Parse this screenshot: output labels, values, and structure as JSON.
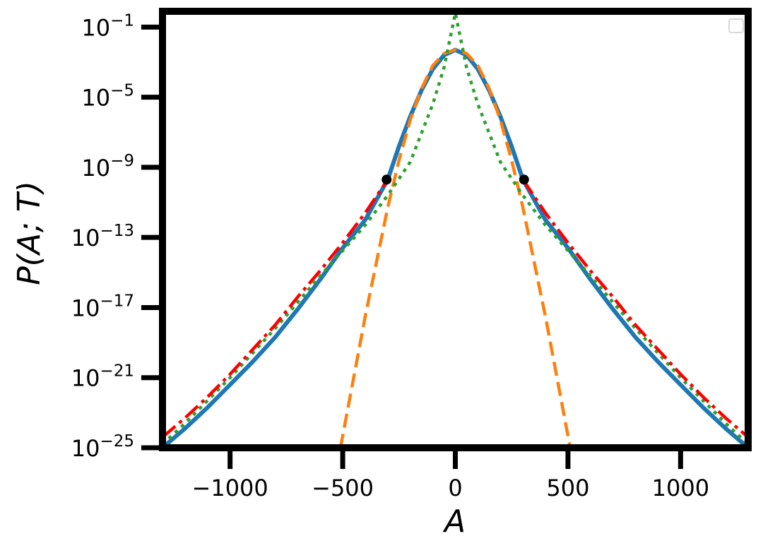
{
  "chart_data": {
    "type": "line",
    "xlabel": "A",
    "ylabel": "P(A; T)",
    "xlim": [
      -1300,
      1300
    ],
    "ylim_log10": [
      -25,
      -0.1
    ],
    "yscale": "log",
    "grid": false,
    "legend": "top-right (empty)",
    "x_ticks": [
      {
        "value": -1000,
        "label": "−1000"
      },
      {
        "value": -500,
        "label": "−500"
      },
      {
        "value": 0,
        "label": "0"
      },
      {
        "value": 500,
        "label": "500"
      },
      {
        "value": 1000,
        "label": "1000"
      }
    ],
    "y_ticks": [
      {
        "exp": -1,
        "base": "10",
        "sup": "−1"
      },
      {
        "exp": -5,
        "base": "10",
        "sup": "−5"
      },
      {
        "exp": -9,
        "base": "10",
        "sup": "−9"
      },
      {
        "exp": -13,
        "base": "10",
        "sup": "−13"
      },
      {
        "exp": -17,
        "base": "10",
        "sup": "−17"
      },
      {
        "exp": -21,
        "base": "10",
        "sup": "−21"
      },
      {
        "exp": -25,
        "base": "10",
        "sup": "−25"
      }
    ],
    "series": [
      {
        "color": "#1f77b4",
        "dash": "solid",
        "x": [
          -1300,
          -1200,
          -1100,
          -1000,
          -900,
          -800,
          -700,
          -600,
          -500,
          -400,
          -300,
          -250,
          -200,
          -150,
          -100,
          -50,
          0,
          50,
          100,
          150,
          200,
          250,
          300,
          400,
          500,
          600,
          700,
          800,
          900,
          1000,
          1100,
          1200,
          1300
        ],
        "log10_y": [
          -25.0,
          -23.9,
          -22.7,
          -21.4,
          -20.1,
          -18.7,
          -17.1,
          -15.4,
          -13.6,
          -12.0,
          -9.7,
          -7.8,
          -6.1,
          -4.6,
          -3.4,
          -2.6,
          -2.3,
          -2.6,
          -3.4,
          -4.6,
          -6.1,
          -7.8,
          -9.7,
          -12.0,
          -13.6,
          -15.4,
          -17.1,
          -18.7,
          -20.1,
          -21.4,
          -22.7,
          -23.9,
          -25.0
        ]
      },
      {
        "color": "#ff7f0e",
        "dash": "dashed",
        "x": [
          -510,
          -400,
          -300,
          -250,
          -200,
          -150,
          -100,
          -50,
          0,
          50,
          100,
          150,
          200,
          250,
          300,
          400,
          510
        ],
        "log10_y": [
          -25.0,
          -17.5,
          -11.3,
          -8.6,
          -6.3,
          -4.5,
          -3.2,
          -2.5,
          -2.3,
          -2.5,
          -3.2,
          -4.5,
          -6.3,
          -8.6,
          -11.3,
          -17.5,
          -25.0
        ]
      },
      {
        "color": "#2ca02c",
        "dash": "dotted",
        "x": [
          -1300,
          -1200,
          -1000,
          -800,
          -600,
          -400,
          -300,
          -200,
          -100,
          -50,
          0,
          50,
          100,
          200,
          300,
          400,
          600,
          800,
          1000,
          1200,
          1300
        ],
        "log10_y": [
          -24.8,
          -23.6,
          -21.0,
          -18.2,
          -15.2,
          -12.3,
          -10.6,
          -8.7,
          -5.4,
          -3.3,
          -0.2,
          -3.3,
          -5.4,
          -8.7,
          -10.6,
          -12.3,
          -15.2,
          -18.2,
          -21.0,
          -23.6,
          -24.8
        ]
      },
      {
        "color": "#ff0000",
        "dash": "dashdot",
        "x": [
          -1300,
          -1200,
          -1100,
          -1000,
          -900,
          -800,
          -700,
          -600,
          -500,
          -400,
          -300
        ],
        "log10_y": [
          -24.4,
          -23.3,
          -22.1,
          -20.8,
          -19.4,
          -18.0,
          -16.4,
          -14.9,
          -13.3,
          -11.6,
          -9.7
        ]
      },
      {
        "color": "#ff0000",
        "dash": "dashdot",
        "x": [
          300,
          400,
          500,
          600,
          700,
          800,
          900,
          1000,
          1100,
          1200,
          1300
        ],
        "log10_y": [
          -9.7,
          -11.6,
          -13.3,
          -14.9,
          -16.4,
          -18.0,
          -19.4,
          -20.8,
          -22.1,
          -23.3,
          -24.4
        ]
      }
    ],
    "markers": [
      {
        "x": -305,
        "log10_y": -9.7,
        "color": "#000000"
      },
      {
        "x": 305,
        "log10_y": -9.7,
        "color": "#000000"
      }
    ]
  }
}
